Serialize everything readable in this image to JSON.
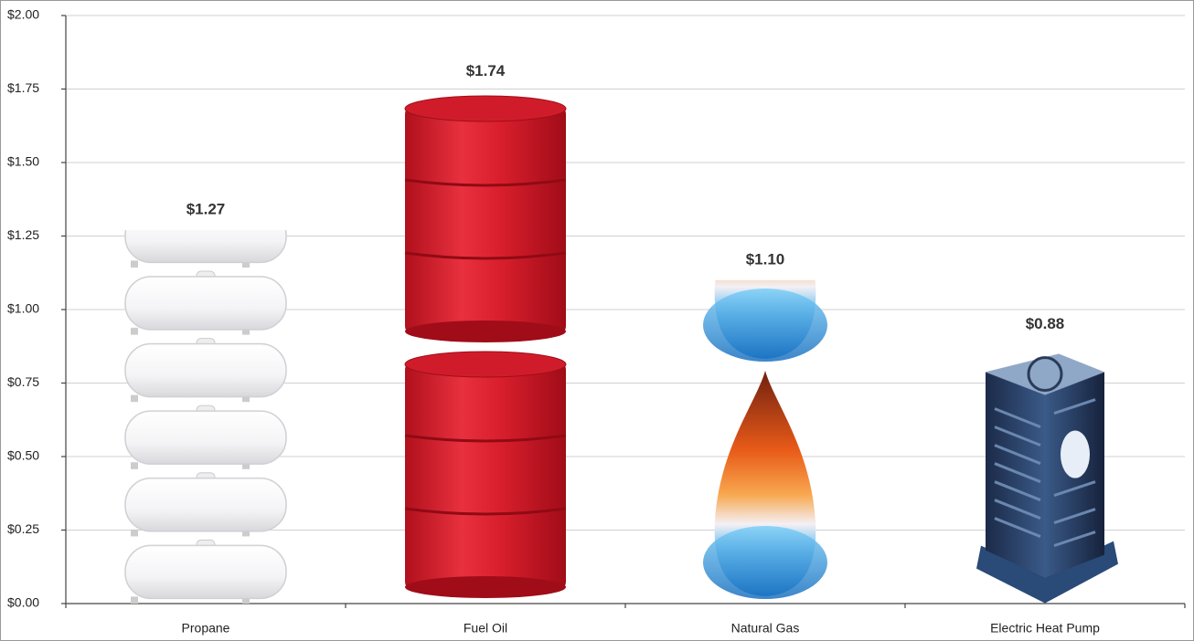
{
  "chart_data": {
    "type": "pictograph",
    "categories": [
      "Propane",
      "Fuel Oil",
      "Natural Gas",
      "Electric Heat Pump"
    ],
    "values": [
      1.27,
      1.74,
      1.1,
      0.88
    ],
    "value_labels": [
      "$1.27",
      "$1.74",
      "$1.10",
      "$0.88"
    ],
    "ylim": [
      0,
      2
    ],
    "yticks": [
      {
        "value": 0,
        "label": "$0.00"
      },
      {
        "value": 0.25,
        "label": "$0.25"
      },
      {
        "value": 0.5,
        "label": "$0.50"
      },
      {
        "value": 0.75,
        "label": "$0.75"
      },
      {
        "value": 1,
        "label": "$1.00"
      },
      {
        "value": 1.25,
        "label": "$1.25"
      },
      {
        "value": 1.5,
        "label": "$1.50"
      },
      {
        "value": 1.75,
        "label": "$1.75"
      },
      {
        "value": 2,
        "label": "$2.00"
      }
    ],
    "grid": true
  }
}
